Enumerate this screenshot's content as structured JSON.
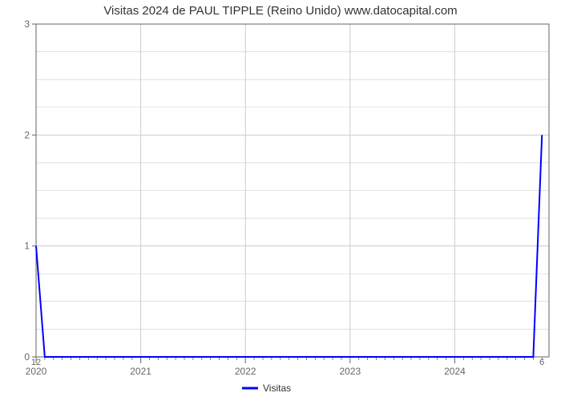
{
  "chart": {
    "type": "line",
    "title": "Visitas 2024 de PAUL TIPPLE (Reino Unido) www.datocapital.com",
    "title_fontsize": 15,
    "background_color": "#ffffff",
    "grid_color": "#cccccc",
    "axis_color": "#666666",
    "tick_label_color": "#666666",
    "xlim": [
      2020,
      2024.9
    ],
    "ylim": [
      0,
      3
    ],
    "x_ticks": [
      2020,
      2021,
      2022,
      2023,
      2024
    ],
    "x_tick_labels": [
      "2020",
      "2021",
      "2022",
      "2023",
      "2024"
    ],
    "y_ticks": [
      0,
      1,
      2,
      3
    ],
    "y_tick_labels": [
      "0",
      "1",
      "2",
      "3"
    ],
    "x_minor_count_per_major": 12,
    "series": {
      "name": "Visitas",
      "color": "#0000ff",
      "line_width": 2,
      "points": [
        {
          "x": 2020.0,
          "y": 1,
          "label": "12",
          "label_pos": "below"
        },
        {
          "x": 2020.083,
          "y": 0
        },
        {
          "x": 2024.75,
          "y": 0
        },
        {
          "x": 2024.833,
          "y": 2,
          "label": "6",
          "label_pos": "below"
        }
      ]
    },
    "legend": {
      "label": "Visitas",
      "swatch_color": "#0000ff",
      "text_color": "#333333"
    }
  }
}
